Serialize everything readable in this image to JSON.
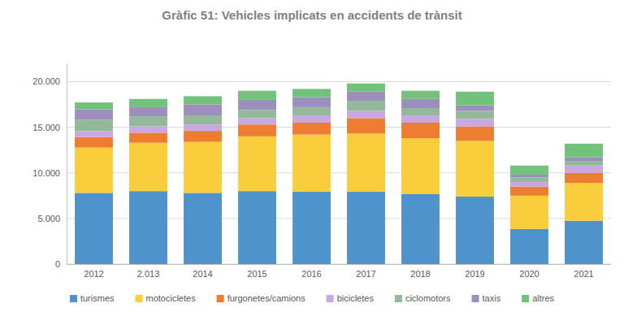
{
  "chart_data": {
    "type": "bar",
    "title": "Gràfic 51: Vehicles implicats en accidents de trànsit",
    "categories": [
      "2012",
      "2.013",
      "2014",
      "2015",
      "2016",
      "2017",
      "2018",
      "2019",
      "2020",
      "2021"
    ],
    "stacked": true,
    "grid": true,
    "legend": "bottom",
    "ylim": [
      0,
      22000
    ],
    "yticks": [
      0,
      {
        "value": 5000,
        "label": "5.000"
      },
      {
        "value": 10000,
        "label": "10.000"
      },
      {
        "value": 15000,
        "label": "15.000"
      },
      {
        "value": 20000,
        "label": "20.000"
      }
    ],
    "series": [
      {
        "name": "turismes",
        "color": "#4f93cd",
        "values": [
          7800,
          8000,
          7800,
          8000,
          7950,
          7950,
          7700,
          7400,
          3850,
          4750
        ]
      },
      {
        "name": "motocicletes",
        "color": "#f9cd3b",
        "values": [
          4970,
          5300,
          5600,
          6000,
          6250,
          6350,
          6100,
          6100,
          3650,
          4150
        ]
      },
      {
        "name": "furgonetes/camions",
        "color": "#ed7d31",
        "values": [
          1150,
          1100,
          1200,
          1300,
          1300,
          1700,
          1700,
          1600,
          1000,
          1100
        ]
      },
      {
        "name": "bicicletes",
        "color": "#c9a8e2",
        "values": [
          650,
          700,
          700,
          700,
          800,
          800,
          800,
          800,
          500,
          800
        ]
      },
      {
        "name": "ciclomotors",
        "color": "#94b99a",
        "values": [
          1250,
          1100,
          1000,
          900,
          900,
          1100,
          800,
          900,
          500,
          500
        ]
      },
      {
        "name": "taxis",
        "color": "#9d8fbd",
        "values": [
          1150,
          1000,
          1200,
          1100,
          1100,
          1000,
          1000,
          600,
          300,
          400
        ]
      },
      {
        "name": "altres",
        "color": "#72c27c",
        "values": [
          750,
          900,
          900,
          1000,
          900,
          900,
          900,
          1500,
          1000,
          1500
        ]
      }
    ]
  }
}
